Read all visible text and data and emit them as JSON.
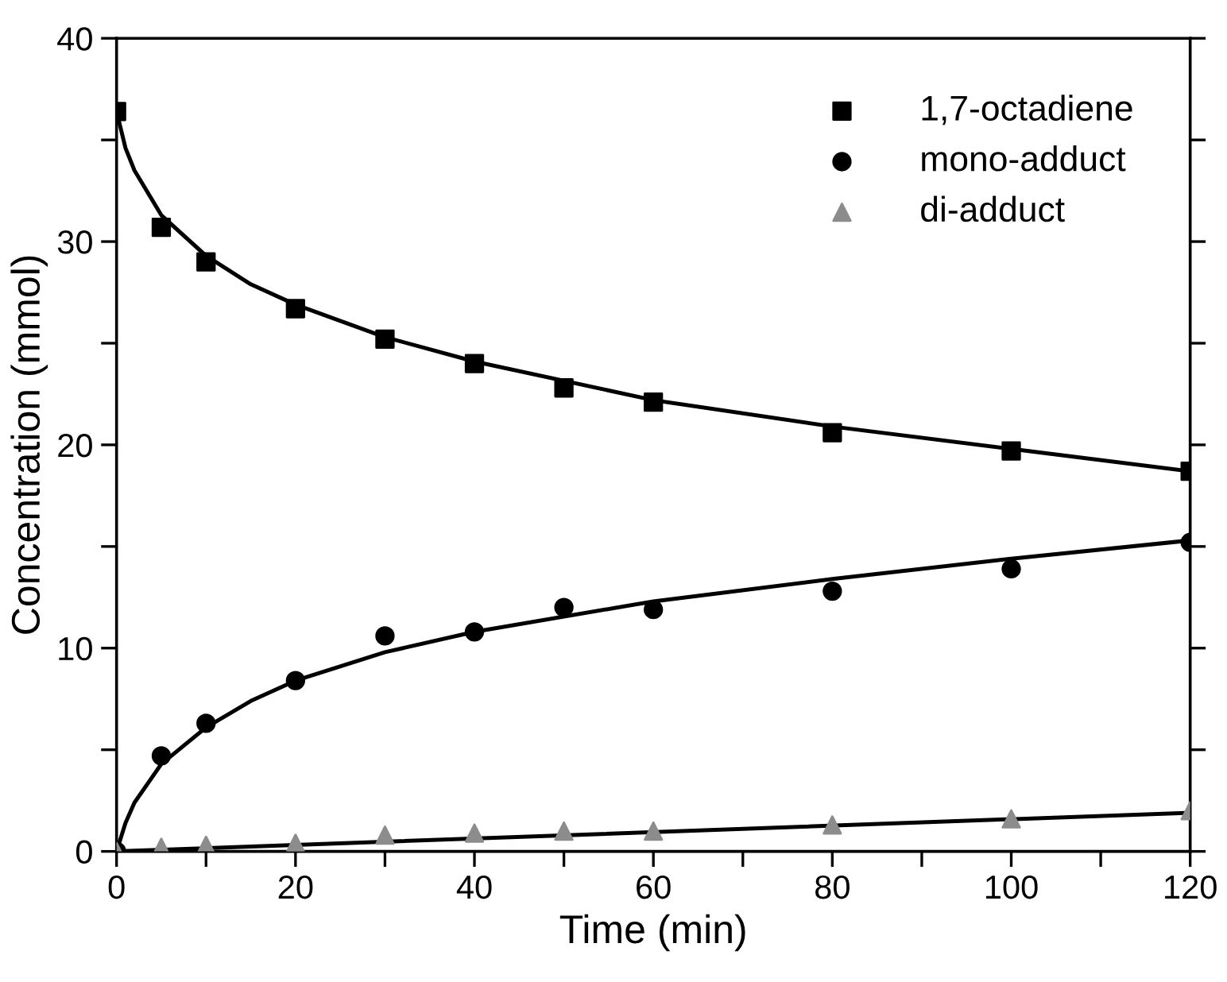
{
  "chart_data": {
    "type": "scatter",
    "xlabel": "Time (min)",
    "ylabel": "Concentration (mmol)",
    "x": [
      0,
      5,
      10,
      20,
      30,
      40,
      50,
      60,
      80,
      100,
      120
    ],
    "xlim": [
      0,
      120
    ],
    "ylim": [
      0,
      40
    ],
    "xticks": [
      0,
      {
        "value": 10,
        "label": null
      },
      20,
      {
        "value": 30,
        "label": null
      },
      40,
      {
        "value": 50,
        "label": null
      },
      60,
      {
        "value": 70,
        "label": null
      },
      80,
      {
        "value": 90,
        "label": null
      },
      100,
      {
        "value": 110,
        "label": null
      },
      120
    ],
    "yticks": [
      0,
      {
        "value": 5,
        "label": null
      },
      10,
      {
        "value": 15,
        "label": null
      },
      20,
      {
        "value": 25,
        "label": null
      },
      30,
      {
        "value": 35,
        "label": null
      },
      40
    ],
    "grid": false,
    "legend": "top right",
    "series": [
      {
        "name": "1,7-octadiene",
        "color": "#000000",
        "marker": "square",
        "values": [
          36.4,
          30.7,
          29.0,
          26.7,
          25.2,
          24.0,
          22.8,
          22.1,
          20.6,
          19.7,
          18.7
        ]
      },
      {
        "name": "mono-adduct",
        "color": "#000000",
        "marker": "circle",
        "values": [
          0,
          4.7,
          6.3,
          8.4,
          10.6,
          10.8,
          12.0,
          11.9,
          12.8,
          13.9,
          15.2
        ]
      },
      {
        "name": "di-adduct",
        "color": "#8c8c8c",
        "marker": "triangle",
        "values": [
          0,
          0.2,
          0.3,
          0.4,
          0.8,
          0.9,
          1.0,
          1.0,
          1.3,
          1.6,
          2.0
        ]
      },
      {
        "type": "line",
        "color": "#000000",
        "marker": "none",
        "line_style": "solid",
        "x": [
          0,
          1,
          2,
          5,
          10,
          15,
          20,
          30,
          40,
          60,
          80,
          100,
          120
        ],
        "values": [
          36.4,
          34.6,
          33.5,
          31.3,
          29.3,
          27.9,
          26.9,
          25.3,
          24.1,
          22.2,
          20.9,
          19.8,
          18.7
        ]
      },
      {
        "type": "line",
        "color": "#000000",
        "marker": "none",
        "line_style": "solid",
        "x": [
          0,
          1,
          2,
          5,
          10,
          15,
          20,
          30,
          40,
          60,
          80,
          100,
          120
        ],
        "values": [
          0,
          1.4,
          2.4,
          4.3,
          6.1,
          7.4,
          8.4,
          9.8,
          10.8,
          12.3,
          13.4,
          14.4,
          15.3
        ]
      },
      {
        "type": "line",
        "color": "#000000",
        "marker": "none",
        "line_style": "solid",
        "x": [
          0,
          120
        ],
        "values": [
          0,
          1.9
        ]
      }
    ]
  }
}
